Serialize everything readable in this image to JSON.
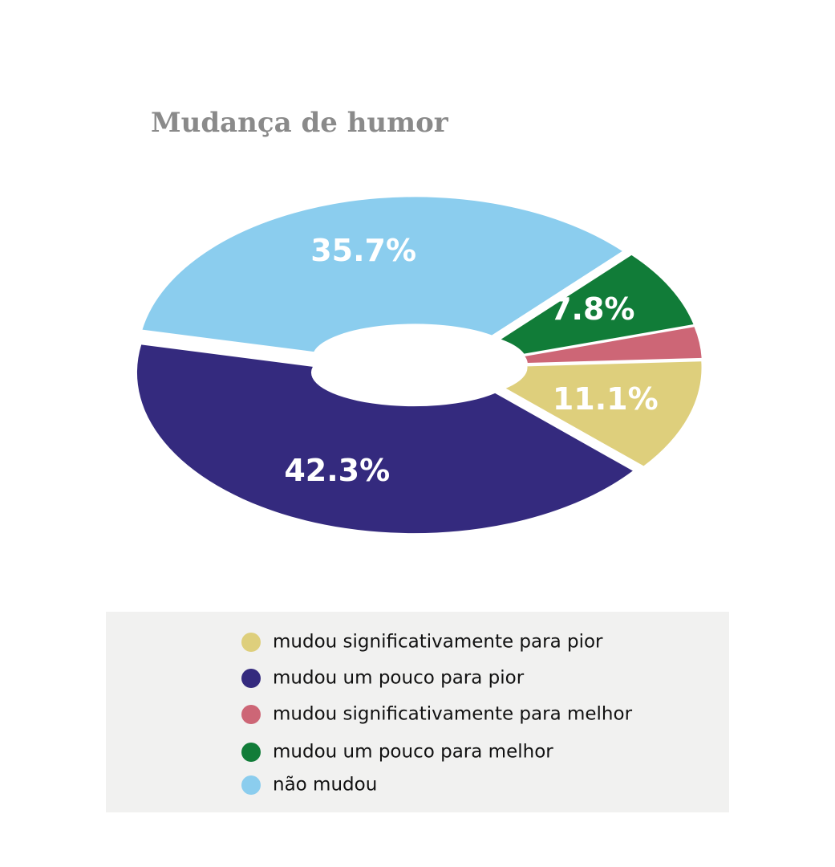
{
  "chart_data": {
    "type": "donut",
    "title": "Mudança de humor",
    "categories": [
      "mudou significativamente para pior",
      "mudou um pouco para pior",
      "mudou significativamente para melhor",
      "mudou um pouco para melhor",
      "não mudou"
    ],
    "values": [
      11.1,
      42.3,
      3.1,
      7.8,
      35.7
    ],
    "value_labels": [
      "11.1%",
      "42.3%",
      null,
      "7.8%",
      "35.7%"
    ],
    "colors": [
      "#decf7c",
      "#342a7e",
      "#cd6676",
      "#117c38",
      "#8bcdee"
    ]
  }
}
